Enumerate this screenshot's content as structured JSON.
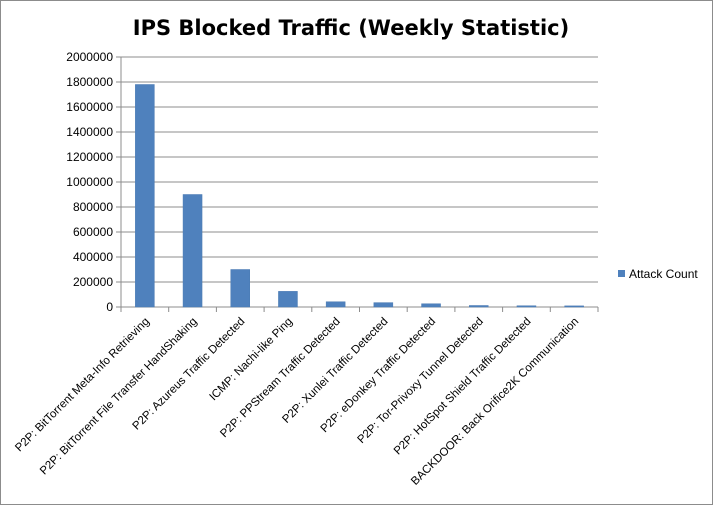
{
  "chart_data": {
    "type": "bar",
    "title": "IPS Blocked Traffic (Weekly Statistic)",
    "xlabel": "",
    "ylabel": "",
    "ylim": [
      0,
      2000000
    ],
    "yticks": [
      0,
      200000,
      400000,
      600000,
      800000,
      1000000,
      1200000,
      1400000,
      1600000,
      1800000,
      2000000
    ],
    "grid": true,
    "legend_position": "right",
    "categories": [
      "P2P: BitTorrent Meta-Info Retrieving",
      "P2P: BitTorrent File Transfer HandShaking",
      "P2P: Azureus Traffic Detected",
      "ICMP: Nachi-like Ping",
      "P2P: PPStream Traffic Detected",
      "P2P: Xunlei Traffic Detected",
      "P2P: eDonkey Traffic Detected",
      "P2P: Tor-Privoxy Tunnel Detected",
      "P2P: HotSpot Shield Traffic Detected",
      "BACKDOOR: Back Orifice2K Communication"
    ],
    "series": [
      {
        "name": "Attack Count",
        "color": "#4f81bd",
        "values": [
          1780000,
          900000,
          300000,
          125000,
          42000,
          35000,
          26000,
          12000,
          10000,
          9000
        ]
      }
    ]
  }
}
